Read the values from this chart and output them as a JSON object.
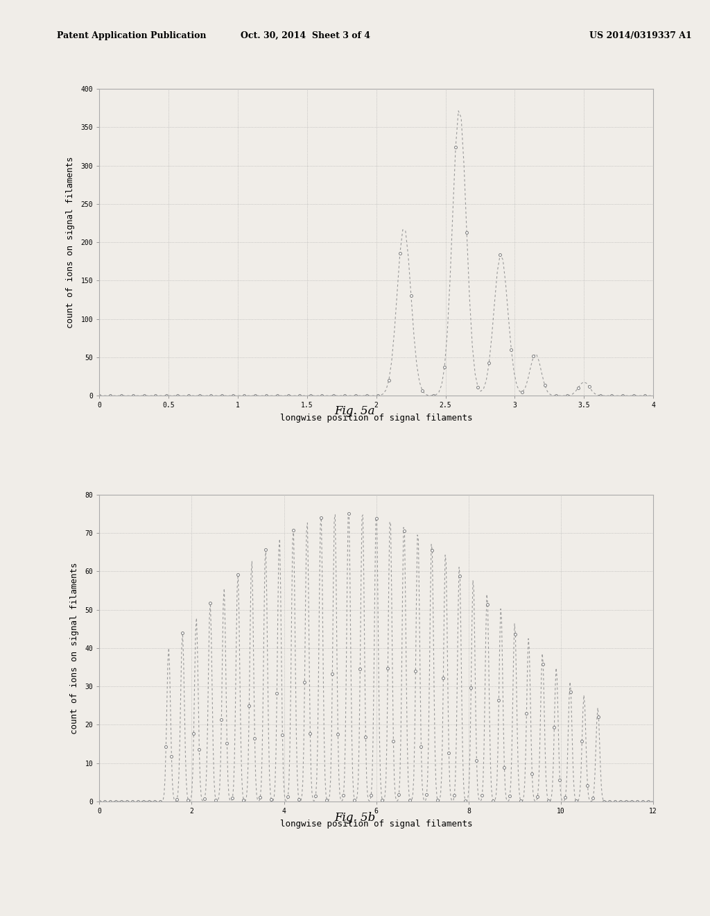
{
  "header_left": "Patent Application Publication",
  "header_mid": "Oct. 30, 2014  Sheet 3 of 4",
  "header_right": "US 2014/0319337 A1",
  "background_color": "#f0ede8",
  "fig5a": {
    "label": "Fig. 5a",
    "xlabel": "longwise position of signal filaments",
    "ylabel": "count of ions on signal filaments",
    "xlim": [
      0,
      4
    ],
    "ylim": [
      0,
      400
    ],
    "yticks": [
      0,
      50,
      100,
      150,
      200,
      250,
      300,
      350,
      400
    ],
    "xticks": [
      0,
      0.5,
      1.0,
      1.5,
      2.0,
      2.5,
      3.0,
      3.5,
      4.0
    ],
    "xtick_labels": [
      "0",
      "0.5",
      "1",
      "1.5",
      "2",
      "2.5",
      "3",
      "3.5",
      "4"
    ],
    "ytick_labels": [
      "0",
      "50",
      "100",
      "150",
      "200",
      "250",
      "300",
      "350",
      "400"
    ]
  },
  "fig5b": {
    "label": "Fig. 5b",
    "xlabel": "longwise position of signal filaments",
    "ylabel": "count of ions on signal filaments",
    "xlim": [
      0,
      12
    ],
    "ylim": [
      0,
      80
    ],
    "yticks": [
      0,
      10,
      20,
      30,
      40,
      50,
      60,
      70,
      80
    ],
    "xticks": [
      0,
      2,
      4,
      6,
      8,
      10,
      12
    ],
    "xtick_labels": [
      "0",
      "2",
      "4",
      "6",
      "8",
      "10",
      "12"
    ],
    "ytick_labels": [
      "0",
      "10",
      "20",
      "30",
      "40",
      "50",
      "60",
      "70",
      "80"
    ]
  }
}
